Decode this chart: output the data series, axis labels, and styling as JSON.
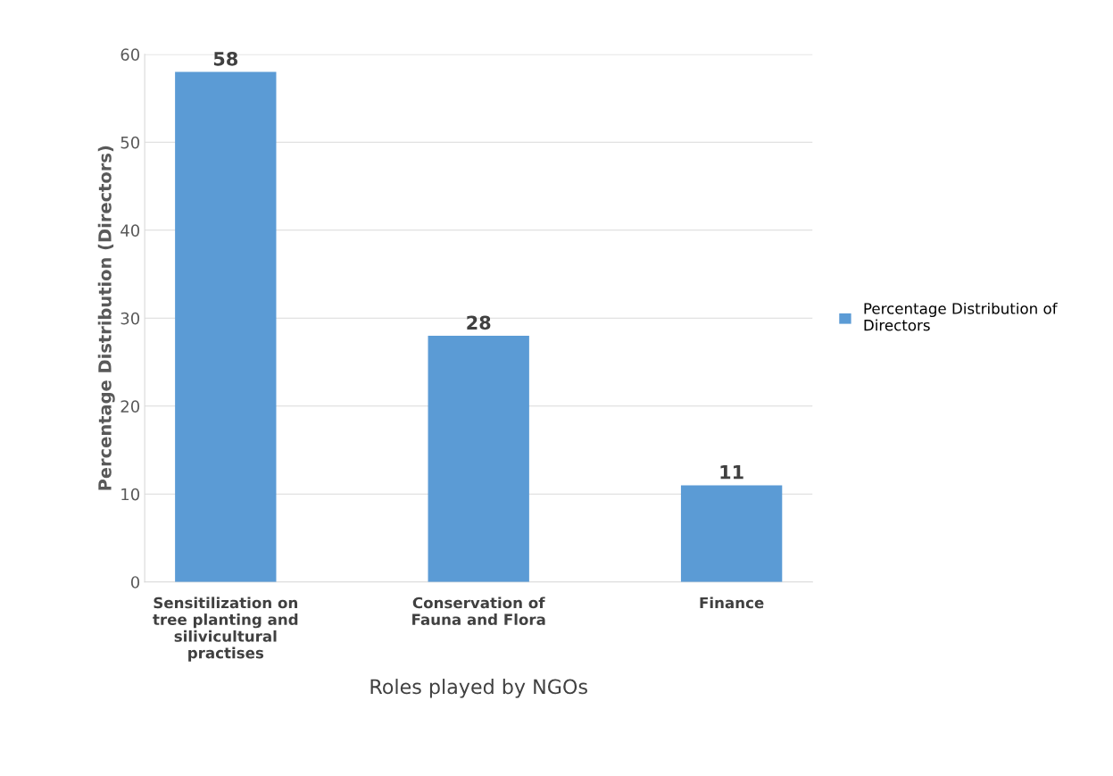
{
  "chart_data": {
    "type": "bar",
    "xlabel": "Roles played by NGOs",
    "ylabel": "Percentage Distribution (Directors)",
    "categories": [
      "Sensitilization on\ntree planting and\nsilivicultural\npractises",
      "Conservation of\nFauna and Flora",
      "Finance"
    ],
    "series": [
      {
        "name": "Percentage Distribution of\nDirectors",
        "color": "#5b9bd5",
        "values": [
          58,
          28,
          11
        ]
      }
    ],
    "ylim": [
      0,
      60
    ],
    "yticks": [
      0,
      10,
      20,
      30,
      40,
      50,
      60
    ],
    "grid": "y",
    "legend": "right",
    "data_labels": true
  }
}
